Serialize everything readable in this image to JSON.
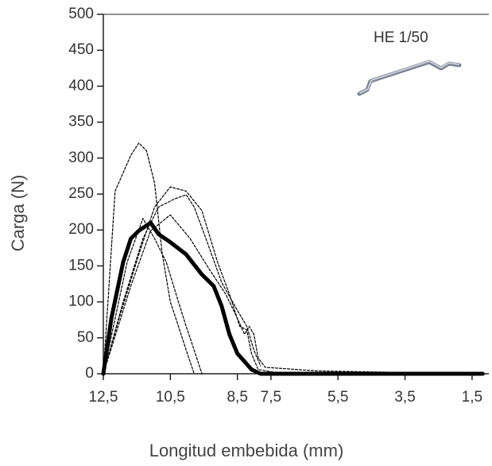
{
  "chart_data": {
    "type": "line",
    "annotation": "HE 1/50",
    "xlabel": "Longitud embebida (mm)",
    "ylabel": "Carga (N)",
    "xlim": [
      12.5,
      1
    ],
    "ylim": [
      0,
      500
    ],
    "xticks": [
      {
        "value": 12.5,
        "label": "12,5"
      },
      {
        "value": 10.5,
        "label": "10,5"
      },
      {
        "value": 8.5,
        "label": "8,5"
      },
      {
        "value": 7.5,
        "label": "7,5"
      },
      {
        "value": 5.5,
        "label": "5,5"
      },
      {
        "value": 3.5,
        "label": "3,5"
      },
      {
        "value": 1.5,
        "label": "1,5"
      }
    ],
    "yticks": [
      0,
      50,
      100,
      150,
      200,
      250,
      300,
      350,
      400,
      450,
      500
    ],
    "series": [
      {
        "color": "#000000",
        "dashed": true,
        "linewidth": 1.2,
        "x": [
          12.5,
          12.15,
          11.68,
          11.44,
          11.21,
          10.97,
          10.74,
          10.5,
          10.26,
          10.03,
          9.79
        ],
        "values": [
          0,
          254,
          304,
          321,
          310,
          265,
          166,
          100,
          66,
          33,
          0
        ]
      },
      {
        "color": "#000000",
        "dashed": true,
        "linewidth": 1.2,
        "x": [
          12.5,
          12.03,
          11.44,
          10.97,
          10.5,
          10.03,
          9.56,
          9.09,
          8.74,
          8.43,
          8.22,
          8.08,
          7.88,
          7.39,
          5.27
        ],
        "values": [
          0,
          77,
          166,
          232,
          260,
          254,
          227,
          155,
          111,
          66,
          61,
          28,
          6,
          2,
          0
        ]
      },
      {
        "color": "#000000",
        "dashed": true,
        "linewidth": 1.2,
        "x": [
          12.5,
          11.91,
          11.32,
          10.85,
          10.38,
          10.03,
          9.79,
          9.44,
          8.97,
          8.5,
          8.22,
          8.01,
          7.81
        ],
        "values": [
          0,
          100,
          188,
          232,
          243,
          249,
          232,
          188,
          127,
          88,
          66,
          33,
          11
        ]
      },
      {
        "color": "#000000",
        "dashed": true,
        "linewidth": 1.2,
        "x": [
          12.5,
          11.79,
          11.32,
          10.97,
          10.62,
          10.26,
          10.03,
          9.79,
          9.56
        ],
        "values": [
          0,
          155,
          216,
          188,
          155,
          100,
          66,
          33,
          0
        ]
      },
      {
        "color": "#000000",
        "dashed": true,
        "linewidth": 1.2,
        "x": [
          12.5,
          11.68,
          11.09,
          10.5,
          9.91,
          9.32,
          8.85,
          8.5,
          8.29,
          8.15,
          8.01,
          7.88,
          7.67,
          6.13,
          1.43
        ],
        "values": [
          0,
          122,
          199,
          221,
          188,
          144,
          111,
          77,
          55,
          66,
          55,
          22,
          9,
          4,
          0
        ]
      },
      {
        "color": "#000000",
        "dashed": false,
        "linewidth": 5,
        "x": [
          12.5,
          12.26,
          11.91,
          11.68,
          11.44,
          11.09,
          10.85,
          10.5,
          10.03,
          9.56,
          9.21,
          8.97,
          8.74,
          8.5,
          8.29,
          8.08,
          7.81,
          1.18
        ],
        "values": [
          0,
          77,
          155,
          188,
          199,
          210,
          194,
          183,
          166,
          138,
          122,
          94,
          55,
          28,
          17,
          6,
          0,
          0
        ]
      }
    ]
  }
}
